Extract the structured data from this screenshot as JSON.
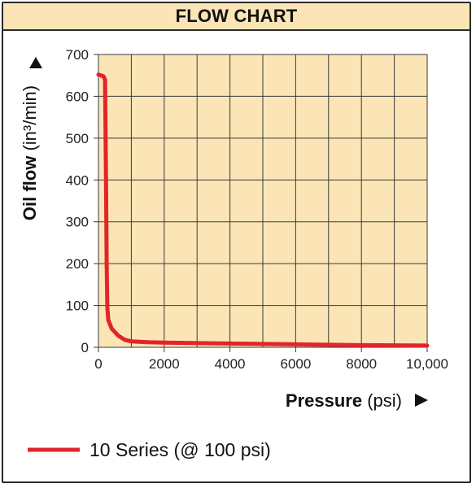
{
  "header": {
    "title": "FLOW CHART"
  },
  "chart_data": {
    "type": "line",
    "title": "FLOW CHART",
    "xlabel_bold": "Pressure",
    "xlabel_unit": "(psi)",
    "ylabel_bold": "Oil flow",
    "ylabel_unit": "(in³/min)",
    "xlim": [
      0,
      10000
    ],
    "ylim": [
      0,
      700
    ],
    "x_ticks": [
      0,
      2000,
      4000,
      6000,
      8000,
      10000
    ],
    "x_tick_labels": [
      "0",
      "2000",
      "4000",
      "6000",
      "8000",
      "10,000"
    ],
    "y_ticks": [
      0,
      100,
      200,
      300,
      400,
      500,
      600,
      700
    ],
    "y_tick_labels": [
      "0",
      "100",
      "200",
      "300",
      "400",
      "500",
      "600",
      "700"
    ],
    "grid": true,
    "legend_position": "bottom-left",
    "series": [
      {
        "name": "10 Series (@ 100 psi)",
        "color": "#e3242b",
        "x": [
          0,
          150,
          200,
          230,
          250,
          270,
          300,
          400,
          600,
          800,
          1000,
          1500,
          2000,
          4000,
          6000,
          8000,
          10000
        ],
        "y": [
          652,
          648,
          640,
          400,
          200,
          95,
          65,
          45,
          28,
          18,
          14,
          12,
          11,
          9,
          7,
          5,
          4
        ]
      }
    ]
  },
  "colors": {
    "plot_bg": "#fbe5b6",
    "grid": "#3a3a3a",
    "line": "#e3242b"
  }
}
